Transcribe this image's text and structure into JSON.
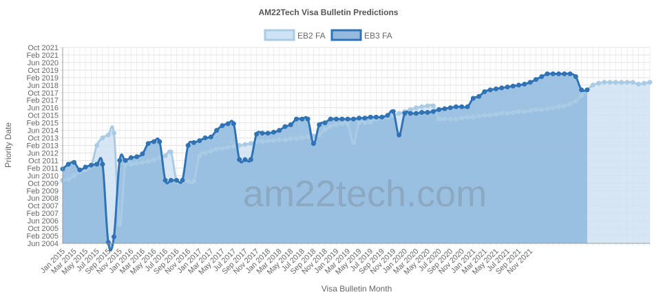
{
  "chart_data": {
    "type": "area",
    "title": "AM22Tech Visa Bulletin Predictions",
    "xlabel": "Visa Bulletin Month",
    "ylabel": "Priority Date",
    "watermark": "am22tech.com",
    "legend_position": "top",
    "grid": true,
    "x_start": "Jan 2015",
    "x_tick_labels": [
      "Jan 2015",
      "Mar 2015",
      "May 2015",
      "Jul 2015",
      "Sep 2015",
      "Nov 2015",
      "Jan 2016",
      "Mar 2016",
      "May 2016",
      "Jul 2016",
      "Sep 2016",
      "Nov 2016",
      "Jan 2017",
      "Mar 2017",
      "May 2017",
      "Jul 2017",
      "Sep 2017",
      "Nov 2017",
      "Jan 2018",
      "Mar 2018",
      "May 2018",
      "Jul 2018",
      "Sep 2018",
      "Nov 2018",
      "Jan 2019",
      "Mar 2019",
      "May 2019",
      "Jul 2019",
      "Sep 2019",
      "Nov 2019",
      "Jan 2020",
      "Mar 2020",
      "May 2020",
      "Jul 2020",
      "Sep 2020",
      "Nov 2020",
      "Jan 2021",
      "Mar 2021",
      "May 2021",
      "Jul 2021",
      "Sep 2021",
      "Nov 2021"
    ],
    "y_tick_labels": [
      "Jun 2004",
      "Feb 2005",
      "Oct 2005",
      "Jun 2006",
      "Feb 2007",
      "Oct 2007",
      "Jun 2008",
      "Feb 2009",
      "Oct 2009",
      "Jun 2010",
      "Feb 2011",
      "Oct 2011",
      "Jun 2012",
      "Feb 2013",
      "Oct 2013",
      "Jun 2014",
      "Feb 2015",
      "Oct 2015",
      "Jun 2016",
      "Feb 2017",
      "Oct 2017",
      "Jun 2018",
      "Feb 2019",
      "Oct 2019",
      "Jun 2020",
      "Feb 2021",
      "Oct 2021"
    ],
    "ylim": [
      "Jun 2004",
      "Oct 2021"
    ],
    "series": [
      {
        "name": "EB2 FA",
        "fill_color": "#cfe2f3",
        "line_color": "#a9cbe5",
        "values": [
          "Jan 2010",
          "Feb 2010",
          "Jun 2010",
          "Oct 2010",
          "Dec 2010",
          "Apr 2011",
          "Feb 2013",
          "Oct 2013",
          "Jan 2014",
          "Mar 2014",
          "Feb 2006",
          "Jun 2011",
          "Jun 2011",
          "Jul 2011",
          "Aug 2011",
          "Sep 2011",
          "Nov 2011",
          "Jan 2012",
          "Mar 2012",
          "Jul 2012",
          "Dec 2009",
          "Dec 2009",
          "Dec 2009",
          "Dec 2009",
          "Mar 2012",
          "Jun 2012",
          "Aug 2012",
          "Oct 2012",
          "Nov 2012",
          "Dec 2012",
          "Jan 2013",
          "Feb 2013",
          "Mar 2013",
          "Apr 2013",
          "Jun 2013",
          "Jun 2013",
          "Jul 2013",
          "Jul 2013",
          "Aug 2013",
          "Aug 2013",
          "Sep 2013",
          "Sep 2013",
          "Oct 2013",
          "Nov 2013",
          "Dec 2013",
          "Jan 2014",
          "Jul 2014",
          "Oct 2014",
          "Dec 2014",
          "Jan 2015",
          "Jan 2015",
          "May 2013",
          "Feb 2015",
          "Feb 2015",
          "Mar 2015",
          "Jun 2015",
          "Jul 2015",
          "Aug 2015",
          "Oct 2015",
          "Dec 2015",
          "Feb 2016",
          "Apr 2016",
          "Jun 2016",
          "Jul 2016",
          "Aug 2016",
          "Aug 2016",
          "Jun 2015",
          "Jun 2015",
          "Jun 2015",
          "Jun 2015",
          "Jul 2015",
          "Aug 2015",
          "Aug 2015",
          "Sep 2015",
          "Oct 2015",
          "Oct 2015",
          "Nov 2015",
          "Dec 2015",
          "Dec 2015",
          "Jan 2016",
          "Feb 2016",
          "Feb 2016",
          "Mar 2016",
          "Apr 2016",
          "Apr 2016",
          "May 2016",
          "Jun 2016",
          "Jul 2016",
          "Aug 2016",
          "Oct 2016",
          "Jan 2017",
          "Jul 2017",
          "Jan 2018",
          "Jun 2018",
          "Aug 2018",
          "Sep 2018",
          "Sep 2018",
          "Sep 2018",
          "Sep 2018",
          "Sep 2018",
          "Sep 2018",
          "Jul 2018",
          "Aug 2018",
          "Sep 2018"
        ]
      },
      {
        "name": "EB3 FA",
        "fill_color": "#94bbdf",
        "line_color": "#2f72b5",
        "values": [
          "Jan 2011",
          "Jun 2011",
          "Aug 2011",
          "Dec 2010",
          "Mar 2011",
          "May 2011",
          "Jun 2011",
          "Jun 2011",
          "Jul 2004",
          "Jan 2005",
          "Oct 2011",
          "Oct 2011",
          "Jan 2012",
          "Feb 2012",
          "May 2012",
          "Apr 2013",
          "Jun 2013",
          "Jun 2013",
          "Jan 2010",
          "Jan 2010",
          "Jan 2010",
          "Jan 2010",
          "Feb 2013",
          "May 2013",
          "Jul 2013",
          "Oct 2013",
          "Nov 2013",
          "Jun 2014",
          "Nov 2014",
          "Jan 2015",
          "Jan 2015",
          "Nov 2011",
          "Nov 2011",
          "Nov 2011",
          "Feb 2014",
          "Mar 2014",
          "Mar 2014",
          "Apr 2014",
          "Jun 2014",
          "Oct 2014",
          "Dec 2014",
          "Jun 2015",
          "Jun 2015",
          "Jun 2015",
          "Apr 2013",
          "Dec 2014",
          "Feb 2015",
          "Jun 2015",
          "Jun 2015",
          "Jun 2015",
          "Jun 2015",
          "Jun 2015",
          "Jul 2015",
          "Jul 2015",
          "Aug 2015",
          "Aug 2015",
          "Aug 2015",
          "Oct 2015",
          "Feb 2016",
          "Jan 2014",
          "Dec 2015",
          "Dec 2015",
          "Dec 2015",
          "Jan 2016",
          "Jan 2016",
          "Feb 2016",
          "Apr 2016",
          "May 2016",
          "Jun 2016",
          "Jul 2016",
          "Jul 2016",
          "Jul 2016",
          "Apr 2017",
          "Jun 2017",
          "Nov 2017",
          "Jan 2018",
          "Feb 2018",
          "Mar 2018",
          "Apr 2018",
          "May 2018",
          "Jun 2018",
          "Jul 2018",
          "Sep 2018",
          "Dec 2018",
          "Mar 2019",
          "Jun 2019",
          "Jun 2019",
          "Jun 2019",
          "Jun 2019",
          "Jun 2019",
          "Mar 2019",
          "Jan 2018",
          "Jan 2018"
        ]
      }
    ]
  }
}
